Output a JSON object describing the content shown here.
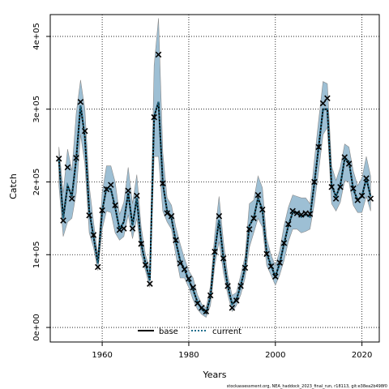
{
  "colors": {
    "ribbon_fill": "#9dbfd4",
    "ribbon_stroke": "#8a8a8a",
    "base_line": "#000000",
    "current_line": "#1f6e8c",
    "observed_marker": "#000000",
    "grid": "#000000"
  },
  "caption": "stockassessment.org, NEA_haddock_2023_final_run, r18113, git:e38ea2b498f0",
  "chart_data": {
    "type": "line",
    "xlabel": "Years",
    "ylabel": "Catch",
    "xlim": [
      1948,
      2024
    ],
    "ylim": [
      -20000,
      430000
    ],
    "x_ticks": [
      1960,
      1980,
      2000,
      2020
    ],
    "x_tick_labels": [
      "1960",
      "1980",
      "2000",
      "2020"
    ],
    "y_ticks": [
      0,
      100000,
      200000,
      300000,
      400000
    ],
    "y_tick_labels": [
      "0e+00",
      "1e+05",
      "2e+05",
      "3e+05",
      "4e+05"
    ],
    "grid": true,
    "legend": {
      "position": "bottom",
      "entries": [
        "base",
        "current"
      ]
    },
    "x": [
      1950,
      1951,
      1952,
      1953,
      1954,
      1955,
      1956,
      1957,
      1958,
      1959,
      1960,
      1961,
      1962,
      1963,
      1964,
      1965,
      1966,
      1967,
      1968,
      1969,
      1970,
      1971,
      1972,
      1973,
      1974,
      1975,
      1976,
      1977,
      1978,
      1979,
      1980,
      1981,
      1982,
      1983,
      1984,
      1985,
      1986,
      1987,
      1988,
      1989,
      1990,
      1991,
      1992,
      1993,
      1994,
      1995,
      1996,
      1997,
      1998,
      1999,
      2000,
      2001,
      2002,
      2003,
      2004,
      2005,
      2006,
      2007,
      2008,
      2009,
      2010,
      2011,
      2012,
      2013,
      2014,
      2015,
      2016,
      2017,
      2018,
      2019,
      2020,
      2021,
      2022
    ],
    "series": [
      {
        "name": "base",
        "values": [
          230000,
          150000,
          195000,
          180000,
          232000,
          305000,
          262000,
          160000,
          125000,
          88000,
          160000,
          192000,
          190000,
          165000,
          135000,
          145000,
          185000,
          140000,
          178000,
          115000,
          88000,
          65000,
          290000,
          310000,
          198000,
          160000,
          150000,
          118000,
          92000,
          80000,
          65000,
          52000,
          35000,
          25000,
          20000,
          42000,
          105000,
          148000,
          95000,
          57000,
          32000,
          38000,
          58000,
          82000,
          140000,
          150000,
          178000,
          162000,
          102000,
          85000,
          70000,
          88000,
          115000,
          140000,
          158000,
          158000,
          152000,
          155000,
          152000,
          198000,
          248000,
          300000,
          300000,
          195000,
          180000,
          195000,
          232000,
          228000,
          190000,
          175000,
          180000,
          205000,
          180000
        ]
      },
      {
        "name": "current",
        "values": [
          230000,
          150000,
          195000,
          180000,
          232000,
          305000,
          262000,
          160000,
          125000,
          88000,
          160000,
          192000,
          190000,
          165000,
          135000,
          145000,
          185000,
          140000,
          178000,
          115000,
          88000,
          65000,
          290000,
          310000,
          198000,
          160000,
          150000,
          118000,
          92000,
          80000,
          65000,
          52000,
          35000,
          25000,
          20000,
          42000,
          105000,
          148000,
          95000,
          57000,
          32000,
          38000,
          58000,
          82000,
          140000,
          150000,
          178000,
          162000,
          102000,
          85000,
          70000,
          88000,
          115000,
          140000,
          158000,
          158000,
          152000,
          155000,
          152000,
          198000,
          248000,
          300000,
          300000,
          195000,
          180000,
          195000,
          232000,
          228000,
          190000,
          175000,
          180000,
          205000,
          180000
        ]
      }
    ],
    "observed": [
      232000,
      147000,
      220000,
      177000,
      233000,
      310000,
      270000,
      154000,
      127000,
      83000,
      161000,
      190000,
      196000,
      168000,
      134000,
      136000,
      188000,
      136000,
      181000,
      115000,
      86000,
      60000,
      289000,
      375000,
      198000,
      157000,
      153000,
      120000,
      88000,
      80000,
      67000,
      55000,
      33000,
      27000,
      22000,
      44000,
      104000,
      153000,
      95000,
      57000,
      27000,
      37000,
      57000,
      82000,
      135000,
      150000,
      182000,
      162000,
      101000,
      84000,
      70000,
      89000,
      116000,
      142000,
      160000,
      157000,
      155000,
      157000,
      156000,
      200000,
      248000,
      308000,
      315000,
      193000,
      177000,
      193000,
      234000,
      225000,
      191000,
      175000,
      181000,
      205000,
      177000
    ],
    "ci_lower": [
      195000,
      125000,
      145000,
      150000,
      185000,
      265000,
      225000,
      130000,
      110000,
      78000,
      135000,
      160000,
      158000,
      130000,
      120000,
      125000,
      155000,
      122000,
      150000,
      100000,
      78000,
      55000,
      235000,
      235000,
      160000,
      145000,
      135000,
      100000,
      68000,
      68000,
      55000,
      38000,
      25000,
      18000,
      14000,
      30000,
      85000,
      118000,
      75000,
      45000,
      22000,
      30000,
      45000,
      68000,
      110000,
      130000,
      150000,
      138000,
      85000,
      72000,
      58000,
      72000,
      92000,
      118000,
      135000,
      135000,
      130000,
      132000,
      135000,
      170000,
      215000,
      265000,
      275000,
      170000,
      160000,
      172000,
      202000,
      200000,
      168000,
      158000,
      158000,
      180000,
      160000
    ],
    "ci_upper": [
      248000,
      185000,
      245000,
      215000,
      295000,
      340000,
      300000,
      195000,
      145000,
      100000,
      185000,
      222000,
      222000,
      200000,
      155000,
      172000,
      220000,
      170000,
      210000,
      138000,
      100000,
      80000,
      360000,
      425000,
      240000,
      178000,
      168000,
      138000,
      115000,
      95000,
      78000,
      68000,
      45000,
      32000,
      27000,
      57000,
      128000,
      180000,
      118000,
      72000,
      44000,
      48000,
      72000,
      98000,
      170000,
      175000,
      208000,
      192000,
      122000,
      100000,
      85000,
      105000,
      140000,
      165000,
      182000,
      180000,
      178000,
      178000,
      170000,
      230000,
      285000,
      338000,
      335000,
      222000,
      202000,
      220000,
      252000,
      248000,
      215000,
      195000,
      205000,
      235000,
      208000
    ]
  }
}
